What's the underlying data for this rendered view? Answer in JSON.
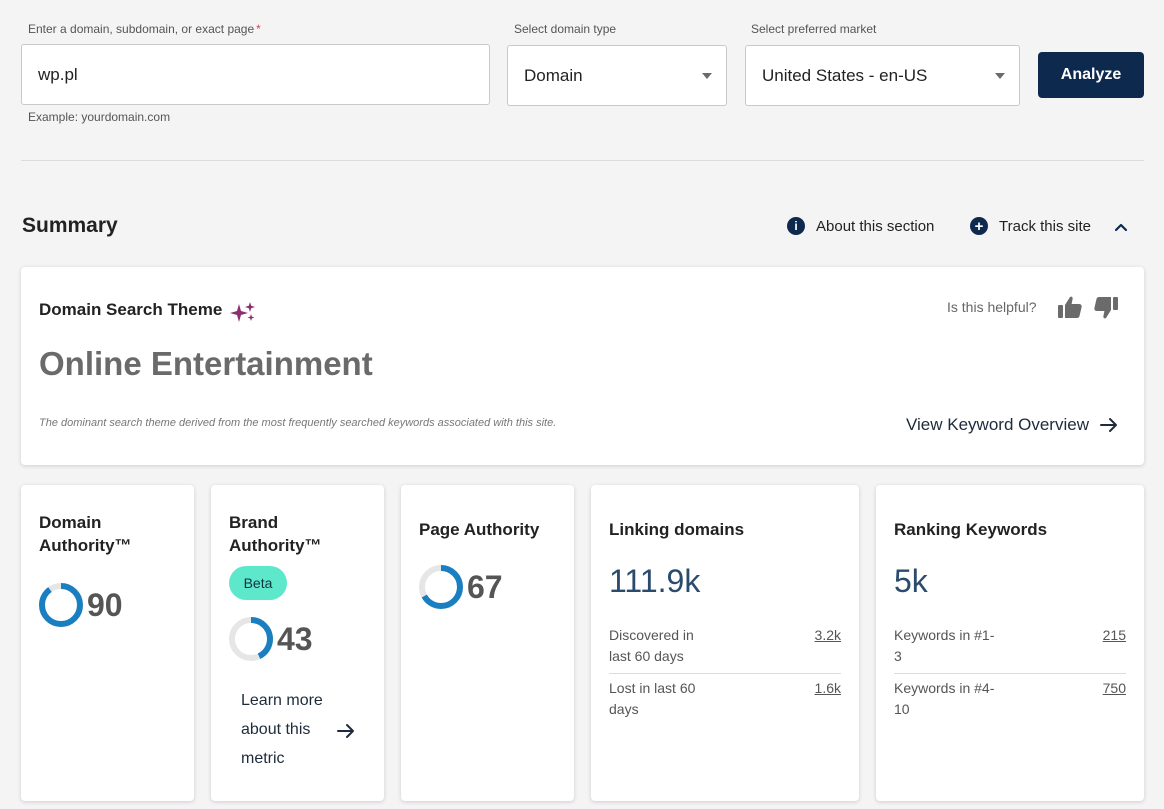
{
  "form": {
    "domain_label": "Enter a domain, subdomain, or exact page",
    "required_mark": "*",
    "domain_value": "wp.pl",
    "domain_hint": "Example: yourdomain.com",
    "type_label": "Select domain type",
    "type_value": "Domain",
    "market_label": "Select preferred market",
    "market_value": "United States - en-US",
    "analyze_label": "Analyze"
  },
  "summary": {
    "title": "Summary",
    "about_label": "About this section",
    "track_label": "Track this site"
  },
  "theme": {
    "label": "Domain Search Theme",
    "value": "Online Entertainment",
    "description": "The dominant search theme derived from the most frequently searched keywords associated with this site.",
    "helpful_label": "Is this helpful?",
    "view_link": "View Keyword Overview"
  },
  "metrics": {
    "domain_authority": {
      "title_line1": "Domain",
      "title_line2": "Authority™",
      "value": "90",
      "fraction": 0.9
    },
    "brand_authority": {
      "title_line1": "Brand",
      "title_line2": "Authority™",
      "badge": "Beta",
      "value": "43",
      "fraction": 0.43,
      "learn_line1": "Learn more",
      "learn_line2": "about this",
      "learn_line3": "metric"
    },
    "page_authority": {
      "title": "Page Authority",
      "value": "67",
      "fraction": 0.67
    },
    "linking_domains": {
      "title": "Linking domains",
      "value": "111.9k",
      "rows": [
        {
          "label_line1": "Discovered in",
          "label_line2": "last 60 days",
          "value": "3.2k"
        },
        {
          "label_line1": "Lost in last 60",
          "label_line2": "days",
          "value": "1.6k"
        }
      ]
    },
    "ranking_keywords": {
      "title": "Ranking Keywords",
      "value": "5k",
      "rows": [
        {
          "label_line1": "Keywords in #1-",
          "label_line2": "3",
          "value": "215"
        },
        {
          "label_line1": "Keywords in #4-",
          "label_line2": "10",
          "value": "750"
        }
      ]
    }
  },
  "colors": {
    "accent": "#0d2a4e",
    "donut": "#1a7fc0",
    "donut_track": "#e6e6e6",
    "beta": "#5ee8cb",
    "sparkle": "#8b2f6f"
  }
}
